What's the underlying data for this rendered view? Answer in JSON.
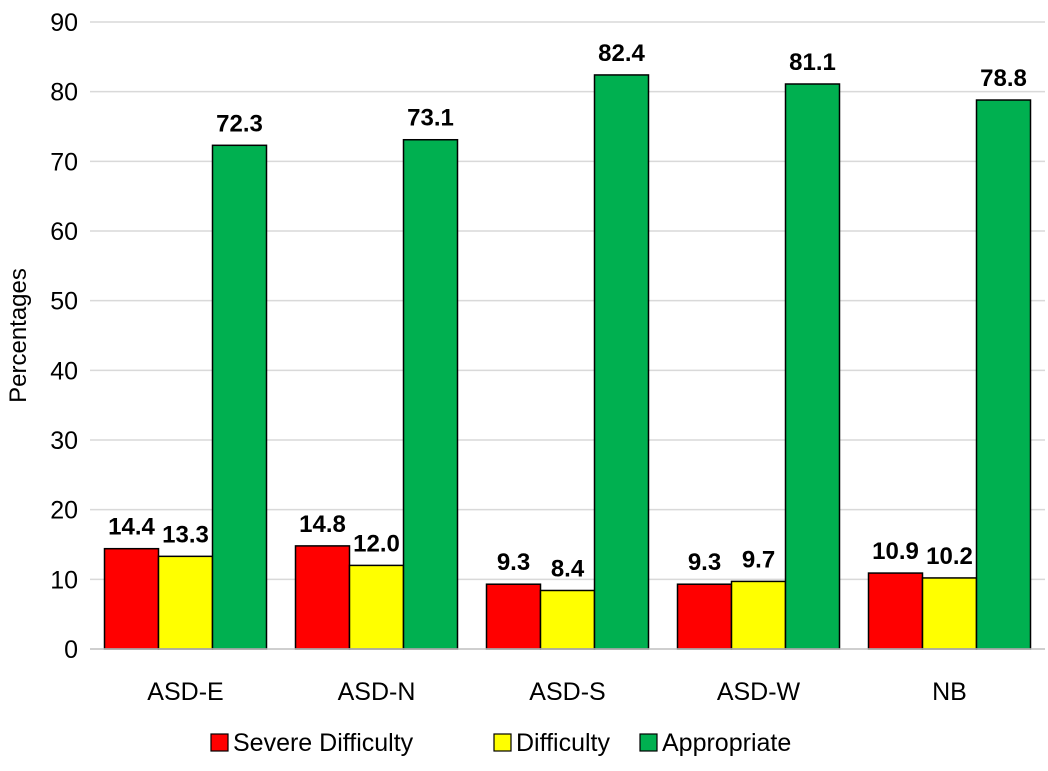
{
  "chart_data": {
    "type": "bar",
    "ylabel": "Percentages",
    "xlabel": "",
    "ylim": [
      0,
      90
    ],
    "yticks": [
      0,
      10,
      20,
      30,
      40,
      50,
      60,
      70,
      80,
      90
    ],
    "grid": true,
    "legend_position": "bottom",
    "categories": [
      "ASD-E",
      "ASD-N",
      "ASD-S",
      "ASD-W",
      "NB"
    ],
    "series": [
      {
        "name": "Severe Difficulty",
        "color": "#ff0000",
        "values": [
          14.4,
          14.8,
          9.3,
          9.3,
          10.9
        ],
        "labels": [
          "14.4",
          "14.8",
          "9.3",
          "9.3",
          "10.9"
        ]
      },
      {
        "name": "Difficulty",
        "color": "#ffff00",
        "values": [
          13.3,
          12.0,
          8.4,
          9.7,
          10.2
        ],
        "labels": [
          "13.3",
          "12.0",
          "8.4",
          "9.7",
          "10.2"
        ]
      },
      {
        "name": "Appropriate",
        "color": "#00b050",
        "values": [
          72.3,
          73.1,
          82.4,
          81.1,
          78.8
        ],
        "labels": [
          "72.3",
          "73.1",
          "82.4",
          "81.1",
          "78.8"
        ]
      }
    ]
  }
}
